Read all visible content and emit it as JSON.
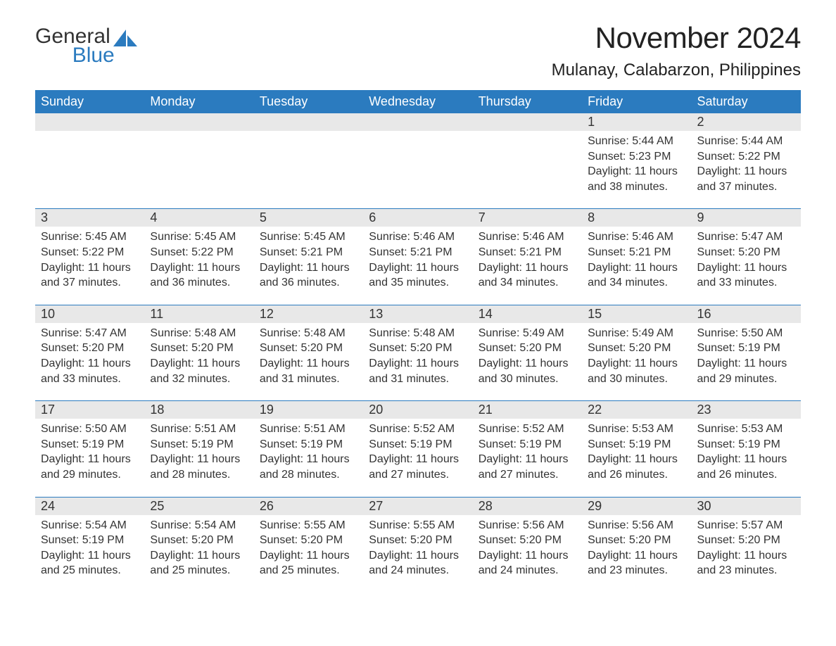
{
  "logo": {
    "general": "General",
    "blue": "Blue"
  },
  "colors": {
    "brand": "#2b7bbf",
    "header_bg": "#2b7bbf",
    "header_text": "#ffffff",
    "daynum_bg": "#e8e8e8",
    "body_text": "#333333",
    "background": "#ffffff"
  },
  "typography": {
    "title_fontsize": 42,
    "location_fontsize": 24,
    "weekday_fontsize": 18,
    "daynum_fontsize": 18,
    "body_fontsize": 16
  },
  "layout": {
    "type": "table",
    "columns": 7,
    "rows": 5,
    "first_weekday_index": 5
  },
  "title": "November 2024",
  "location": "Mulanay, Calabarzon, Philippines",
  "weekdays": [
    "Sunday",
    "Monday",
    "Tuesday",
    "Wednesday",
    "Thursday",
    "Friday",
    "Saturday"
  ],
  "days": [
    {
      "n": "1",
      "sunrise": "Sunrise: 5:44 AM",
      "sunset": "Sunset: 5:23 PM",
      "daylight": "Daylight: 11 hours and 38 minutes."
    },
    {
      "n": "2",
      "sunrise": "Sunrise: 5:44 AM",
      "sunset": "Sunset: 5:22 PM",
      "daylight": "Daylight: 11 hours and 37 minutes."
    },
    {
      "n": "3",
      "sunrise": "Sunrise: 5:45 AM",
      "sunset": "Sunset: 5:22 PM",
      "daylight": "Daylight: 11 hours and 37 minutes."
    },
    {
      "n": "4",
      "sunrise": "Sunrise: 5:45 AM",
      "sunset": "Sunset: 5:22 PM",
      "daylight": "Daylight: 11 hours and 36 minutes."
    },
    {
      "n": "5",
      "sunrise": "Sunrise: 5:45 AM",
      "sunset": "Sunset: 5:21 PM",
      "daylight": "Daylight: 11 hours and 36 minutes."
    },
    {
      "n": "6",
      "sunrise": "Sunrise: 5:46 AM",
      "sunset": "Sunset: 5:21 PM",
      "daylight": "Daylight: 11 hours and 35 minutes."
    },
    {
      "n": "7",
      "sunrise": "Sunrise: 5:46 AM",
      "sunset": "Sunset: 5:21 PM",
      "daylight": "Daylight: 11 hours and 34 minutes."
    },
    {
      "n": "8",
      "sunrise": "Sunrise: 5:46 AM",
      "sunset": "Sunset: 5:21 PM",
      "daylight": "Daylight: 11 hours and 34 minutes."
    },
    {
      "n": "9",
      "sunrise": "Sunrise: 5:47 AM",
      "sunset": "Sunset: 5:20 PM",
      "daylight": "Daylight: 11 hours and 33 minutes."
    },
    {
      "n": "10",
      "sunrise": "Sunrise: 5:47 AM",
      "sunset": "Sunset: 5:20 PM",
      "daylight": "Daylight: 11 hours and 33 minutes."
    },
    {
      "n": "11",
      "sunrise": "Sunrise: 5:48 AM",
      "sunset": "Sunset: 5:20 PM",
      "daylight": "Daylight: 11 hours and 32 minutes."
    },
    {
      "n": "12",
      "sunrise": "Sunrise: 5:48 AM",
      "sunset": "Sunset: 5:20 PM",
      "daylight": "Daylight: 11 hours and 31 minutes."
    },
    {
      "n": "13",
      "sunrise": "Sunrise: 5:48 AM",
      "sunset": "Sunset: 5:20 PM",
      "daylight": "Daylight: 11 hours and 31 minutes."
    },
    {
      "n": "14",
      "sunrise": "Sunrise: 5:49 AM",
      "sunset": "Sunset: 5:20 PM",
      "daylight": "Daylight: 11 hours and 30 minutes."
    },
    {
      "n": "15",
      "sunrise": "Sunrise: 5:49 AM",
      "sunset": "Sunset: 5:20 PM",
      "daylight": "Daylight: 11 hours and 30 minutes."
    },
    {
      "n": "16",
      "sunrise": "Sunrise: 5:50 AM",
      "sunset": "Sunset: 5:19 PM",
      "daylight": "Daylight: 11 hours and 29 minutes."
    },
    {
      "n": "17",
      "sunrise": "Sunrise: 5:50 AM",
      "sunset": "Sunset: 5:19 PM",
      "daylight": "Daylight: 11 hours and 29 minutes."
    },
    {
      "n": "18",
      "sunrise": "Sunrise: 5:51 AM",
      "sunset": "Sunset: 5:19 PM",
      "daylight": "Daylight: 11 hours and 28 minutes."
    },
    {
      "n": "19",
      "sunrise": "Sunrise: 5:51 AM",
      "sunset": "Sunset: 5:19 PM",
      "daylight": "Daylight: 11 hours and 28 minutes."
    },
    {
      "n": "20",
      "sunrise": "Sunrise: 5:52 AM",
      "sunset": "Sunset: 5:19 PM",
      "daylight": "Daylight: 11 hours and 27 minutes."
    },
    {
      "n": "21",
      "sunrise": "Sunrise: 5:52 AM",
      "sunset": "Sunset: 5:19 PM",
      "daylight": "Daylight: 11 hours and 27 minutes."
    },
    {
      "n": "22",
      "sunrise": "Sunrise: 5:53 AM",
      "sunset": "Sunset: 5:19 PM",
      "daylight": "Daylight: 11 hours and 26 minutes."
    },
    {
      "n": "23",
      "sunrise": "Sunrise: 5:53 AM",
      "sunset": "Sunset: 5:19 PM",
      "daylight": "Daylight: 11 hours and 26 minutes."
    },
    {
      "n": "24",
      "sunrise": "Sunrise: 5:54 AM",
      "sunset": "Sunset: 5:19 PM",
      "daylight": "Daylight: 11 hours and 25 minutes."
    },
    {
      "n": "25",
      "sunrise": "Sunrise: 5:54 AM",
      "sunset": "Sunset: 5:20 PM",
      "daylight": "Daylight: 11 hours and 25 minutes."
    },
    {
      "n": "26",
      "sunrise": "Sunrise: 5:55 AM",
      "sunset": "Sunset: 5:20 PM",
      "daylight": "Daylight: 11 hours and 25 minutes."
    },
    {
      "n": "27",
      "sunrise": "Sunrise: 5:55 AM",
      "sunset": "Sunset: 5:20 PM",
      "daylight": "Daylight: 11 hours and 24 minutes."
    },
    {
      "n": "28",
      "sunrise": "Sunrise: 5:56 AM",
      "sunset": "Sunset: 5:20 PM",
      "daylight": "Daylight: 11 hours and 24 minutes."
    },
    {
      "n": "29",
      "sunrise": "Sunrise: 5:56 AM",
      "sunset": "Sunset: 5:20 PM",
      "daylight": "Daylight: 11 hours and 23 minutes."
    },
    {
      "n": "30",
      "sunrise": "Sunrise: 5:57 AM",
      "sunset": "Sunset: 5:20 PM",
      "daylight": "Daylight: 11 hours and 23 minutes."
    }
  ]
}
